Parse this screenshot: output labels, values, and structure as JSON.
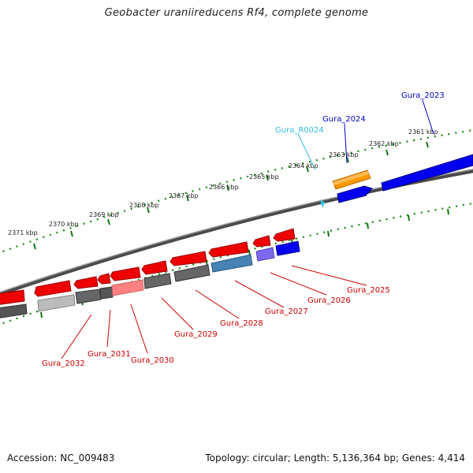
{
  "title": "Geobacter uraniireducens Rf4, complete genome",
  "footer": {
    "accession": "Accession: NC_009483",
    "summary": "Topology: circular; Length: 5,136,364 bp; Genes: 4,414"
  },
  "ticks": [
    "2371 kbp",
    "2370 kbp",
    "2369 kbp",
    "2368 kbp",
    "2367 kbp",
    "2366 kbp",
    "2365 kbp",
    "2364 kbp",
    "2363 kbp",
    "2362 kbp",
    "2361 kbp"
  ],
  "gene_labels": [
    "Gura_2023",
    "Gura_2024",
    "Gura_R0024",
    "Gura_2025",
    "Gura_2026",
    "Gura_2027",
    "Gura_2028",
    "Gura_2029",
    "Gura_2030",
    "Gura_2031",
    "Gura_2032"
  ],
  "colors": {
    "cds": "#ff0000",
    "cds_selected": "#0000ee",
    "rna": "#ff9900",
    "trna": "#33ccee",
    "cog_gray": "#666666",
    "cog_steelblue": "#4682b4",
    "cog_slateblue": "#7b68ee",
    "cog_salmon": "#ff8080",
    "tick_green": "#007700",
    "label_red": "#cc0000",
    "label_blue": "#0000cc",
    "label_cyan": "#33bbdd"
  }
}
